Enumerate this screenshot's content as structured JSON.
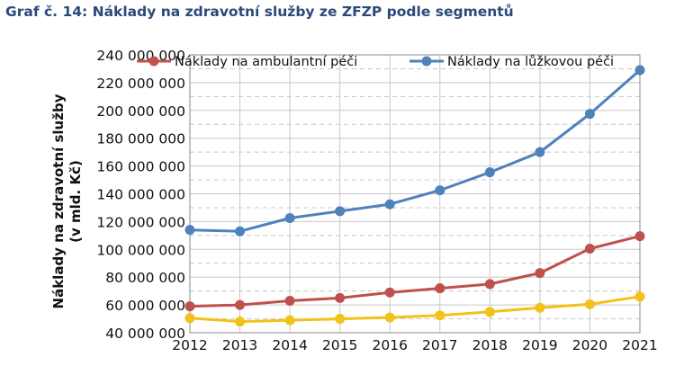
{
  "title": "Graf č. 14: Náklady na zdravotní služby ze ZFZP podle segmentů",
  "colors": {
    "title": "#2b4a78",
    "series": [
      "#c0504d",
      "#4f81bd",
      "#f3c117"
    ],
    "grid": "#c8c8c8",
    "axis": "#888888"
  },
  "chart_data": {
    "type": "line",
    "title": "Graf č. 14: Náklady na zdravotní služby ze ZFZP podle segmentů",
    "xlabel": "",
    "ylabel": [
      "Náklady na zdravotní služby",
      "(v mld. Kč)"
    ],
    "x": [
      "2012",
      "2013",
      "2014",
      "2015",
      "2016",
      "2017",
      "2018",
      "2019",
      "2020",
      "2021"
    ],
    "ylim": [
      40000000,
      240000000
    ],
    "yticks": [
      40000000,
      60000000,
      80000000,
      100000000,
      120000000,
      140000000,
      160000000,
      180000000,
      200000000,
      220000000,
      240000000
    ],
    "ytick_labels": [
      "40 000 000",
      "60 000 000",
      "80 000 000",
      "100 000 000",
      "120 000 000",
      "140 000 000",
      "160 000 000",
      "180 000 000",
      "200 000 000",
      "220 000 000",
      "240 000 000"
    ],
    "grid": true,
    "legend_position": "top",
    "series": [
      {
        "name": "Náklady na ambulantní péči",
        "color": "#c0504d",
        "marker": "circle",
        "legend": true,
        "values": [
          59000000,
          60000000,
          63000000,
          65000000,
          69000000,
          72000000,
          75000000,
          83000000,
          100500000,
          109500000
        ]
      },
      {
        "name": "Náklady na lůžkovou péči",
        "color": "#4f81bd",
        "marker": "circle",
        "legend": true,
        "values": [
          114000000,
          113000000,
          122500000,
          127500000,
          132500000,
          142500000,
          155500000,
          170000000,
          197500000,
          229000000
        ]
      },
      {
        "color": "#f3c117",
        "marker": "circle",
        "legend": false,
        "values": [
          50500000,
          48000000,
          49000000,
          50000000,
          51000000,
          52500000,
          55000000,
          58000000,
          60500000,
          66000000
        ]
      }
    ]
  }
}
